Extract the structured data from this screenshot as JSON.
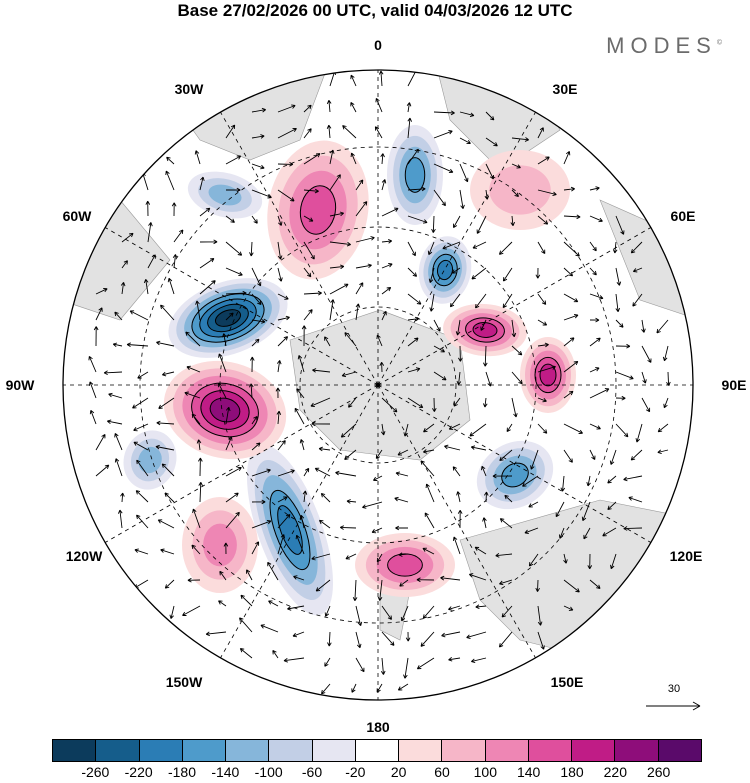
{
  "title": "Base 27/02/2026 00 UTC, valid 04/03/2026 12 UTC",
  "brand": "MODES",
  "brand_mark": "©",
  "longitude_labels": {
    "top": "0",
    "bottom": "180",
    "left": "90W",
    "right": "90E",
    "nw30": "30W",
    "ne30": "30E",
    "nw60": "60W",
    "ne60": "60E",
    "sw120": "120W",
    "se120": "120E",
    "sw150": "150W",
    "se150": "150E"
  },
  "vector_scale": {
    "value": "30"
  },
  "colorbar": {
    "colors": [
      "#0c3b5c",
      "#155d8b",
      "#2b7db5",
      "#4e9bcb",
      "#86b6da",
      "#c2cfe6",
      "#e6e6f2",
      "#ffffff",
      "#fbdcdc",
      "#f6b6c8",
      "#ee86b4",
      "#df4f9d",
      "#c01c86",
      "#8e0d7a",
      "#5a0a6a"
    ],
    "tick_labels": [
      "-260",
      "-220",
      "-180",
      "-140",
      "-100",
      "-60",
      "-20",
      "20",
      "60",
      "100",
      "140",
      "180",
      "220",
      "260"
    ]
  },
  "anomaly_centers": [
    {
      "name": "low-south-atlantic",
      "value": -260
    },
    {
      "name": "low-weddell",
      "value": -140
    },
    {
      "name": "low-indian",
      "value": -180
    },
    {
      "name": "low-south-indian",
      "value": -140
    },
    {
      "name": "low-amundsen",
      "value": -180
    },
    {
      "name": "low-pacific",
      "value": -100
    },
    {
      "name": "low-east-pacific",
      "value": -100
    },
    {
      "name": "high-pacific",
      "value": 220
    },
    {
      "name": "high-atlantic",
      "value": 140
    },
    {
      "name": "high-indian",
      "value": 200
    },
    {
      "name": "high-east-indian",
      "value": 180
    },
    {
      "name": "high-ross",
      "value": 160
    },
    {
      "name": "high-west-pacific",
      "value": 120
    },
    {
      "name": "high-east-atlantic",
      "value": 60
    }
  ]
}
